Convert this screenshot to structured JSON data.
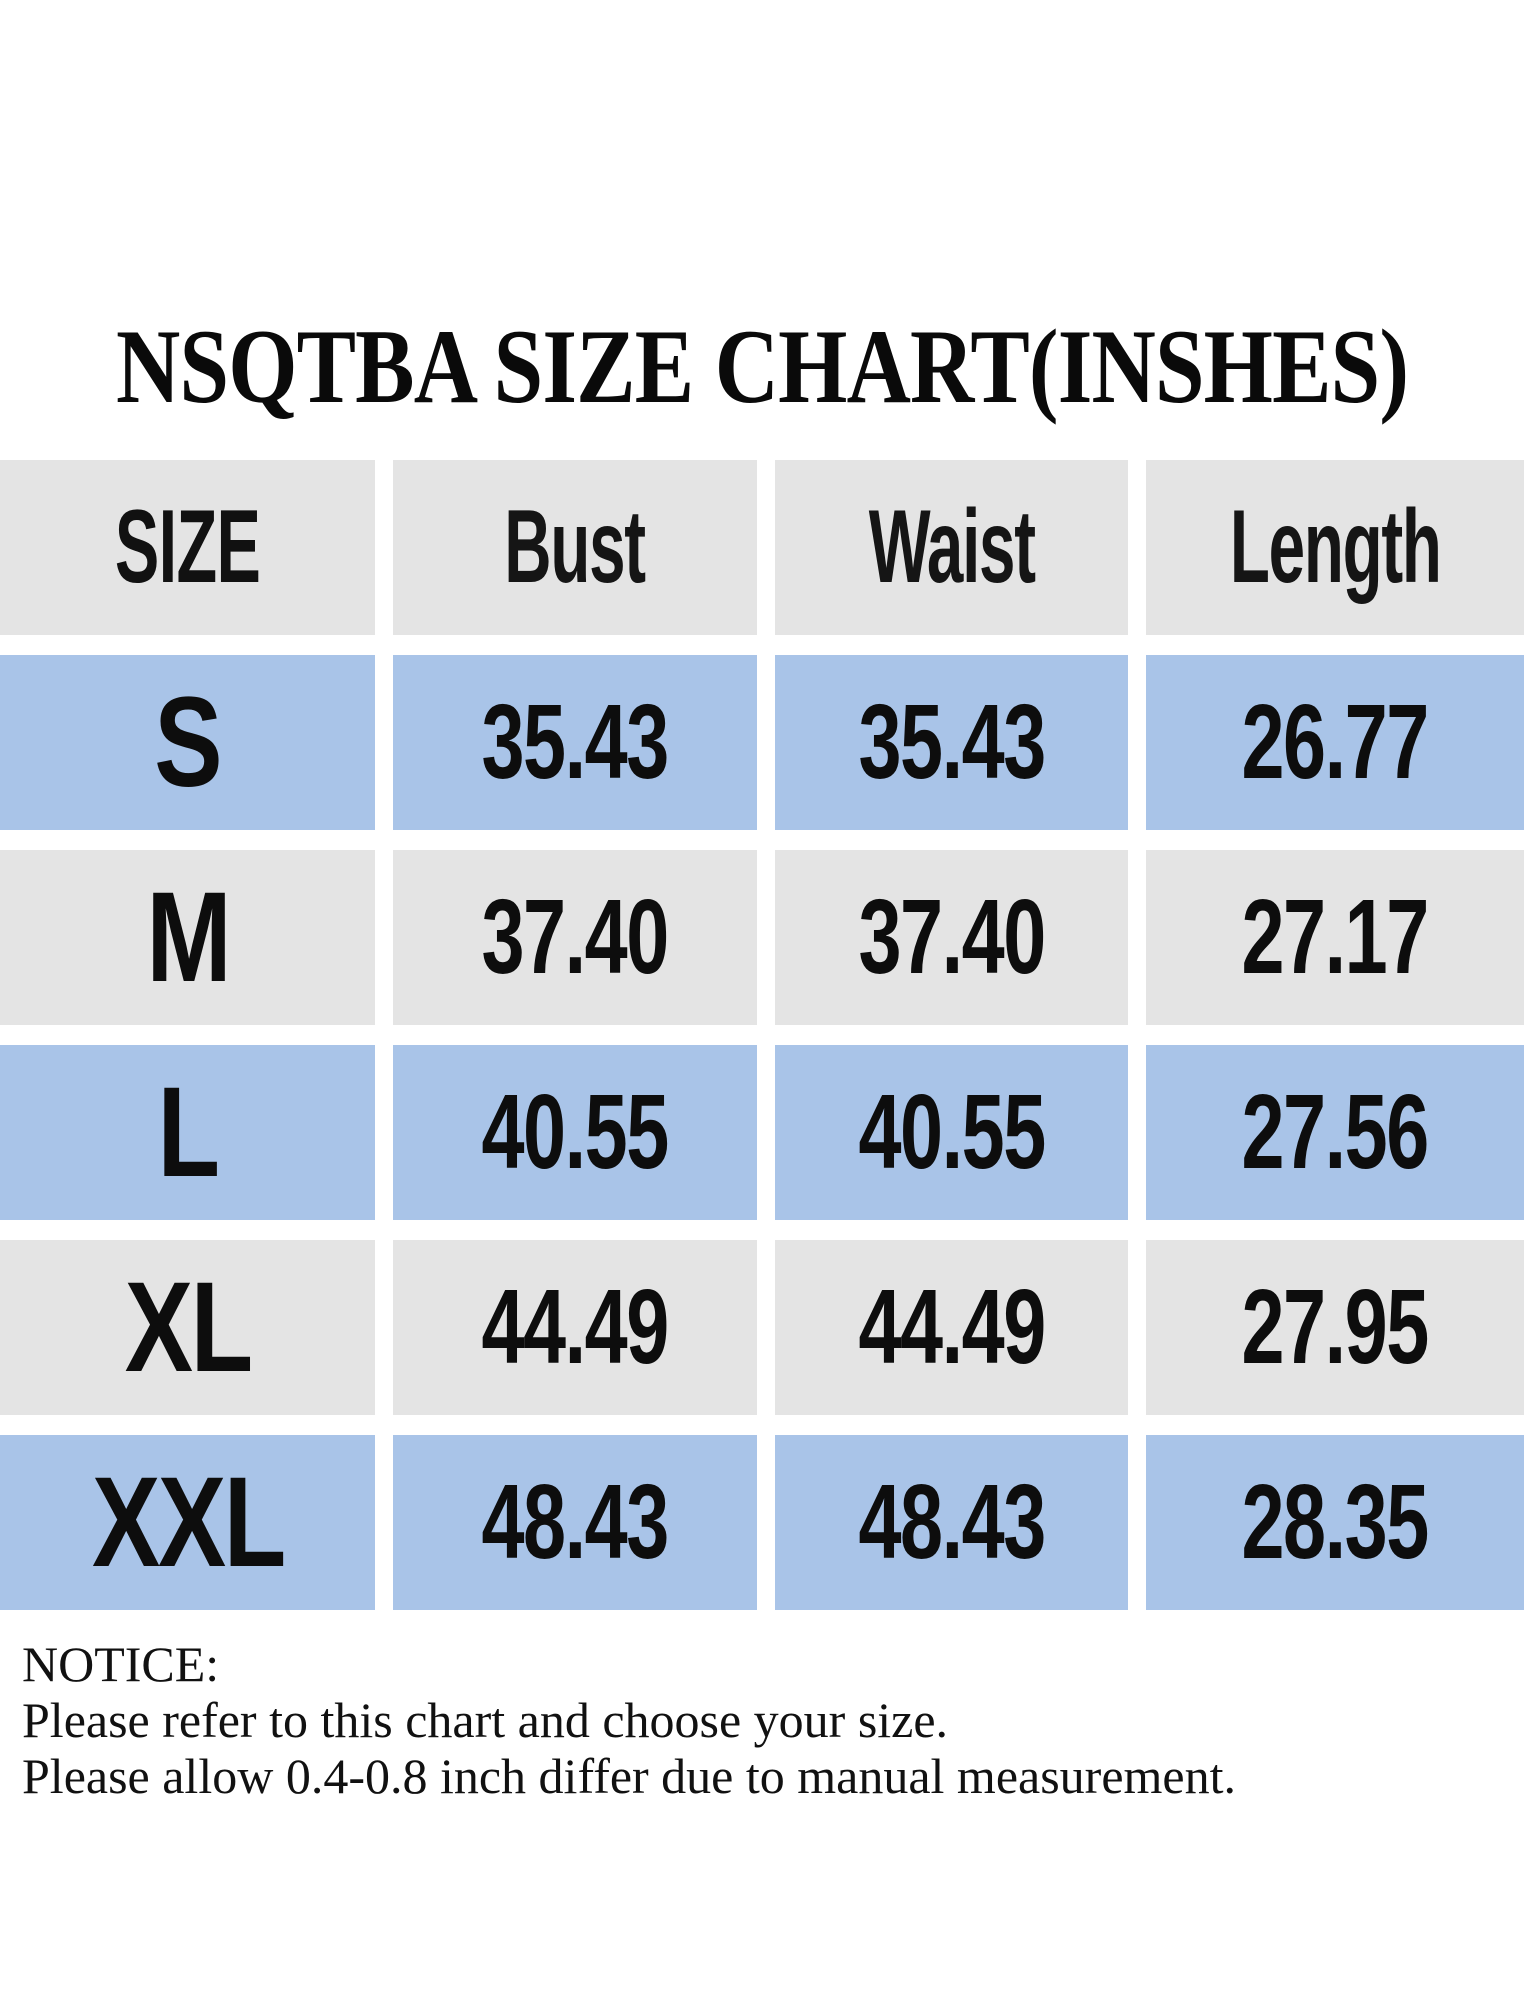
{
  "page": {
    "title": "NSQTBA SIZE CHART(INSHES)"
  },
  "table": {
    "columns": [
      "SIZE",
      "Bust",
      "Waist",
      "Length"
    ],
    "rows": [
      {
        "size": "S",
        "values": [
          "35.43",
          "35.43",
          "26.77"
        ]
      },
      {
        "size": "M",
        "values": [
          "37.40",
          "37.40",
          "27.17"
        ]
      },
      {
        "size": "L",
        "values": [
          "40.55",
          "40.55",
          "27.56"
        ]
      },
      {
        "size": "XL",
        "values": [
          "44.49",
          "44.49",
          "27.95"
        ]
      },
      {
        "size": "XXL",
        "values": [
          "48.43",
          "48.43",
          "28.35"
        ]
      }
    ]
  },
  "notice": {
    "heading": "NOTICE:",
    "lines": [
      "Please refer to this chart and choose your size.",
      "Please allow 0.4-0.8 inch differ due to manual measurement."
    ]
  },
  "colors": {
    "row_blue": "#a9c4e8",
    "row_gray": "#e4e4e4",
    "text": "#111111",
    "background": "#ffffff"
  },
  "chart_data": {
    "type": "table",
    "title": "NSQTBA SIZE CHART(INSHES)",
    "columns": [
      "SIZE",
      "Bust",
      "Waist",
      "Length"
    ],
    "rows": [
      [
        "S",
        35.43,
        35.43,
        26.77
      ],
      [
        "M",
        37.4,
        37.4,
        27.17
      ],
      [
        "L",
        40.55,
        40.55,
        27.56
      ],
      [
        "XL",
        44.49,
        44.49,
        27.95
      ],
      [
        "XXL",
        48.43,
        48.43,
        28.35
      ]
    ]
  }
}
